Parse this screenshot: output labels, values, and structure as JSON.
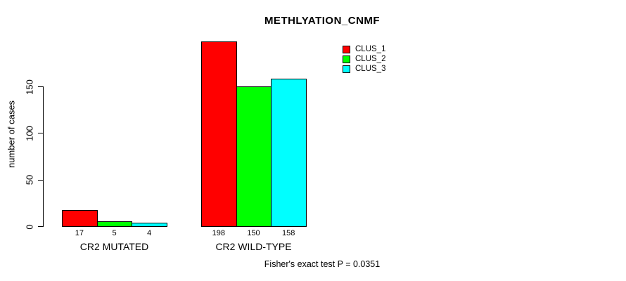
{
  "title": "METHLYATION_CNMF",
  "y_axis": {
    "label": "number of cases",
    "ticks": [
      0,
      50,
      100,
      150
    ],
    "tick_labels": [
      "0",
      "50",
      "100",
      "150"
    ]
  },
  "legend": {
    "position": "top-right",
    "items": [
      {
        "label": "CLUS_1",
        "color": "#ff0000"
      },
      {
        "label": "CLUS_2",
        "color": "#00ff00"
      },
      {
        "label": "CLUS_3",
        "color": "#00ffff"
      }
    ]
  },
  "annotation": "Fisher's exact test P = 0.0351",
  "chart_data": {
    "type": "bar",
    "title": "METHLYATION_CNMF",
    "xlabel": "",
    "ylabel": "number of cases",
    "categories": [
      "CR2 MUTATED",
      "CR2 WILD-TYPE"
    ],
    "series": [
      {
        "name": "CLUS_1",
        "color": "#ff0000",
        "values": [
          17,
          198
        ]
      },
      {
        "name": "CLUS_2",
        "color": "#00ff00",
        "values": [
          5,
          150
        ]
      },
      {
        "name": "CLUS_3",
        "color": "#00ffff",
        "values": [
          4,
          158
        ]
      }
    ],
    "bar_value_labels": [
      [
        "17",
        "5",
        "4"
      ],
      [
        "198",
        "150",
        "158"
      ]
    ],
    "ylim": [
      0,
      210
    ],
    "yticks": [
      0,
      50,
      100,
      150
    ],
    "grid": false,
    "legend_position": "top-right",
    "annotation": "Fisher's exact test P = 0.0351"
  }
}
